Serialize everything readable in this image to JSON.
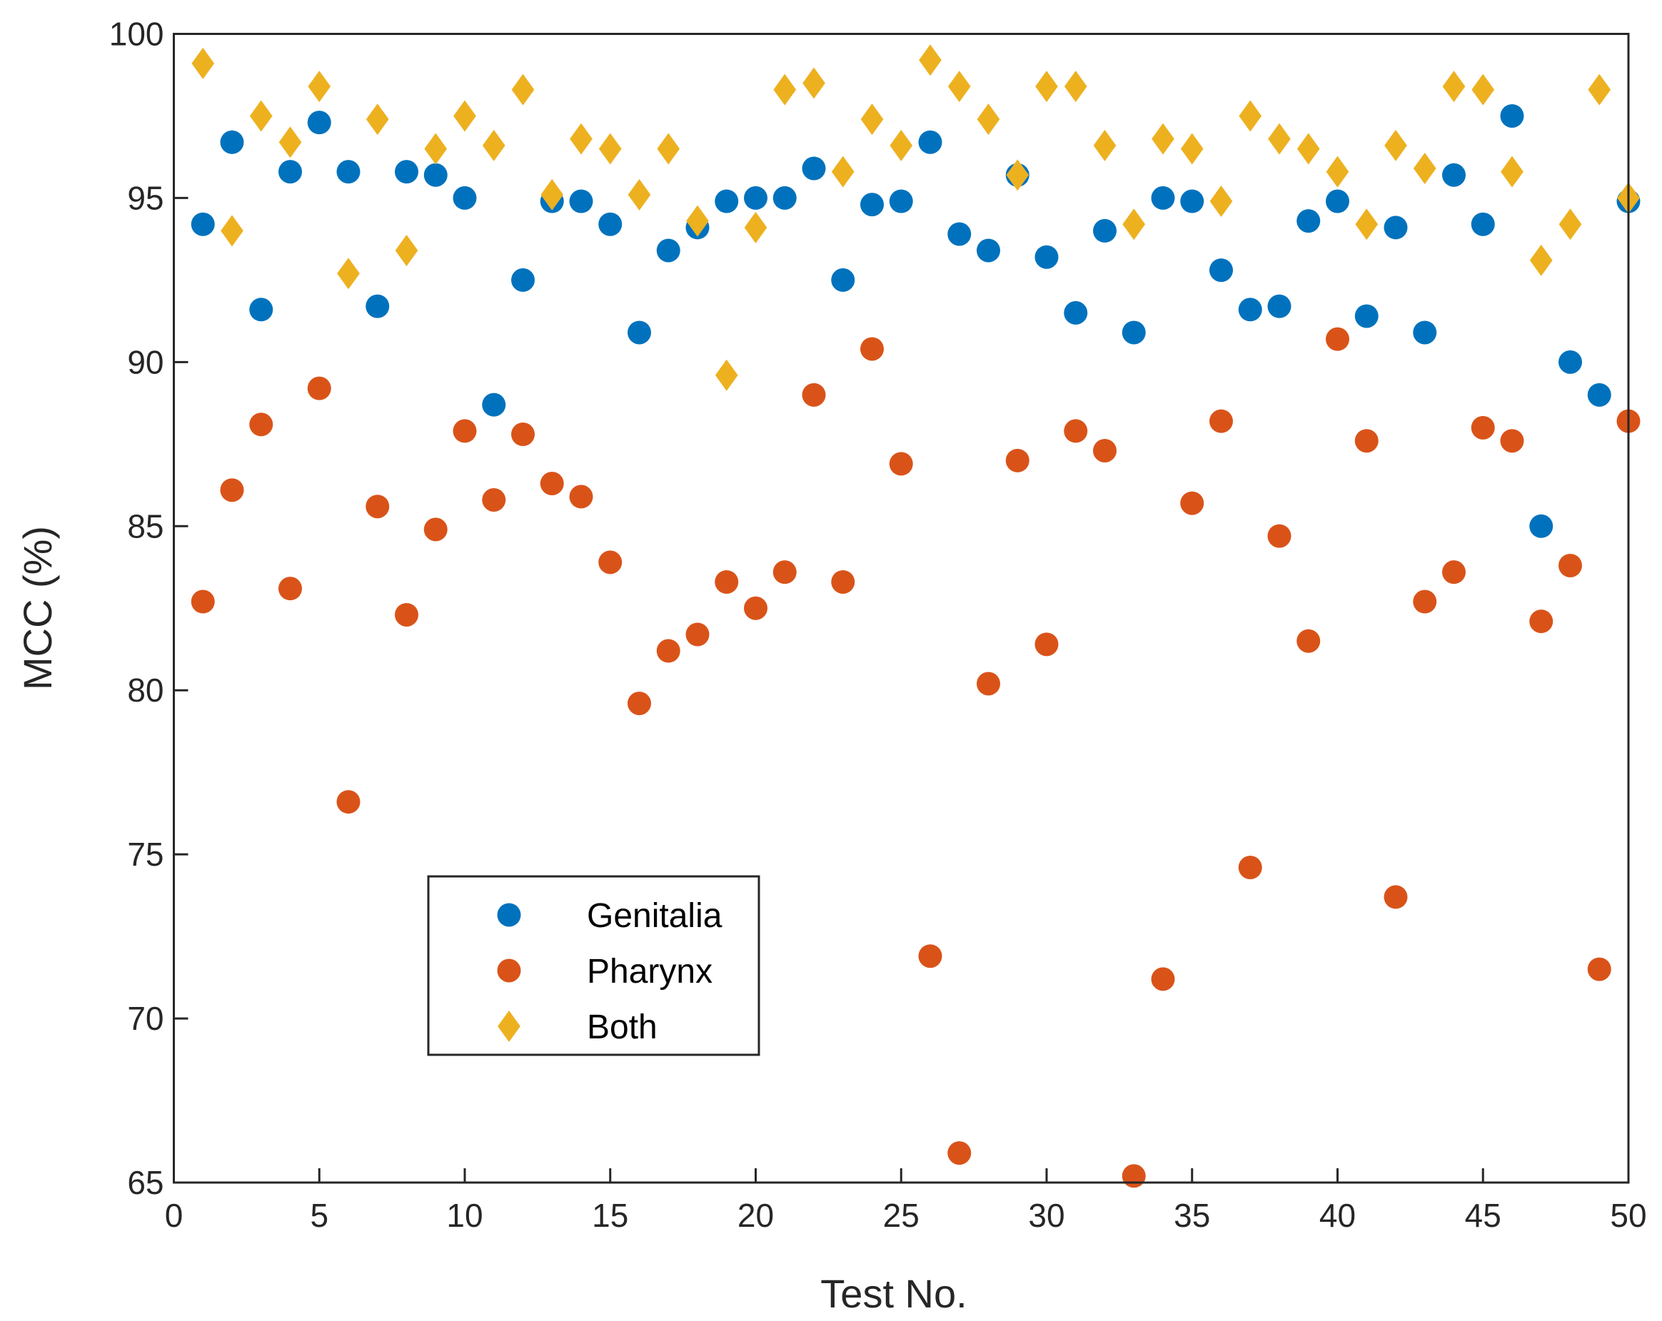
{
  "chart_data": {
    "type": "scatter",
    "title": "",
    "xlabel": "Test No.",
    "ylabel": "MCC (%)",
    "xlim": [
      0,
      50
    ],
    "ylim": [
      65,
      100
    ],
    "xticks": [
      0,
      5,
      10,
      15,
      20,
      25,
      30,
      35,
      40,
      45,
      50
    ],
    "yticks": [
      65,
      70,
      75,
      80,
      85,
      90,
      95,
      100
    ],
    "grid": false,
    "legend_position": "lower-left-center",
    "x": [
      1,
      2,
      3,
      4,
      5,
      6,
      7,
      8,
      9,
      10,
      11,
      12,
      13,
      14,
      15,
      16,
      17,
      18,
      19,
      20,
      21,
      22,
      23,
      24,
      25,
      26,
      27,
      28,
      29,
      30,
      31,
      32,
      33,
      34,
      35,
      36,
      37,
      38,
      39,
      40,
      41,
      42,
      43,
      44,
      45,
      46,
      47,
      48,
      49,
      50
    ],
    "series": [
      {
        "name": "Genitalia",
        "marker": "circle",
        "color": "#0072BD",
        "values": [
          94.2,
          96.7,
          91.6,
          95.8,
          97.3,
          95.8,
          91.7,
          95.8,
          95.7,
          95.0,
          88.7,
          92.5,
          94.9,
          94.9,
          94.2,
          90.9,
          93.4,
          94.1,
          94.9,
          95.0,
          95.0,
          95.9,
          92.5,
          94.8,
          94.9,
          96.7,
          93.9,
          93.4,
          95.7,
          93.2,
          91.5,
          94.0,
          90.9,
          95.0,
          94.9,
          92.8,
          91.6,
          91.7,
          94.3,
          94.9,
          91.4,
          94.1,
          90.9,
          95.7,
          94.2,
          97.5,
          85.0,
          90.0,
          89.0,
          94.9
        ]
      },
      {
        "name": "Pharynx",
        "marker": "circle",
        "color": "#D95319",
        "values": [
          82.7,
          86.1,
          88.1,
          83.1,
          89.2,
          76.6,
          85.6,
          82.3,
          84.9,
          87.9,
          85.8,
          87.8,
          86.3,
          85.9,
          83.9,
          79.6,
          81.2,
          81.7,
          83.3,
          82.5,
          83.6,
          89.0,
          83.3,
          90.4,
          86.9,
          71.9,
          65.9,
          80.2,
          87.0,
          81.4,
          87.9,
          87.3,
          65.2,
          71.2,
          85.7,
          88.2,
          74.6,
          84.7,
          81.5,
          90.7,
          87.6,
          73.7,
          82.7,
          83.6,
          88.0,
          87.6,
          82.1,
          83.8,
          71.5,
          88.2
        ]
      },
      {
        "name": "Both",
        "marker": "diamond",
        "color": "#EDB120",
        "values": [
          99.1,
          94.0,
          97.5,
          96.7,
          98.4,
          92.7,
          97.4,
          93.4,
          96.5,
          97.5,
          96.6,
          98.3,
          95.1,
          96.8,
          96.5,
          95.1,
          96.5,
          94.3,
          89.6,
          94.1,
          98.3,
          98.5,
          95.8,
          97.4,
          96.6,
          99.2,
          98.4,
          97.4,
          95.7,
          98.4,
          98.4,
          96.6,
          94.2,
          96.8,
          96.5,
          94.9,
          97.5,
          96.8,
          96.5,
          95.8,
          94.2,
          96.6,
          95.9,
          98.4,
          98.3,
          95.8,
          93.1,
          94.2,
          98.3,
          95.0
        ]
      }
    ]
  }
}
